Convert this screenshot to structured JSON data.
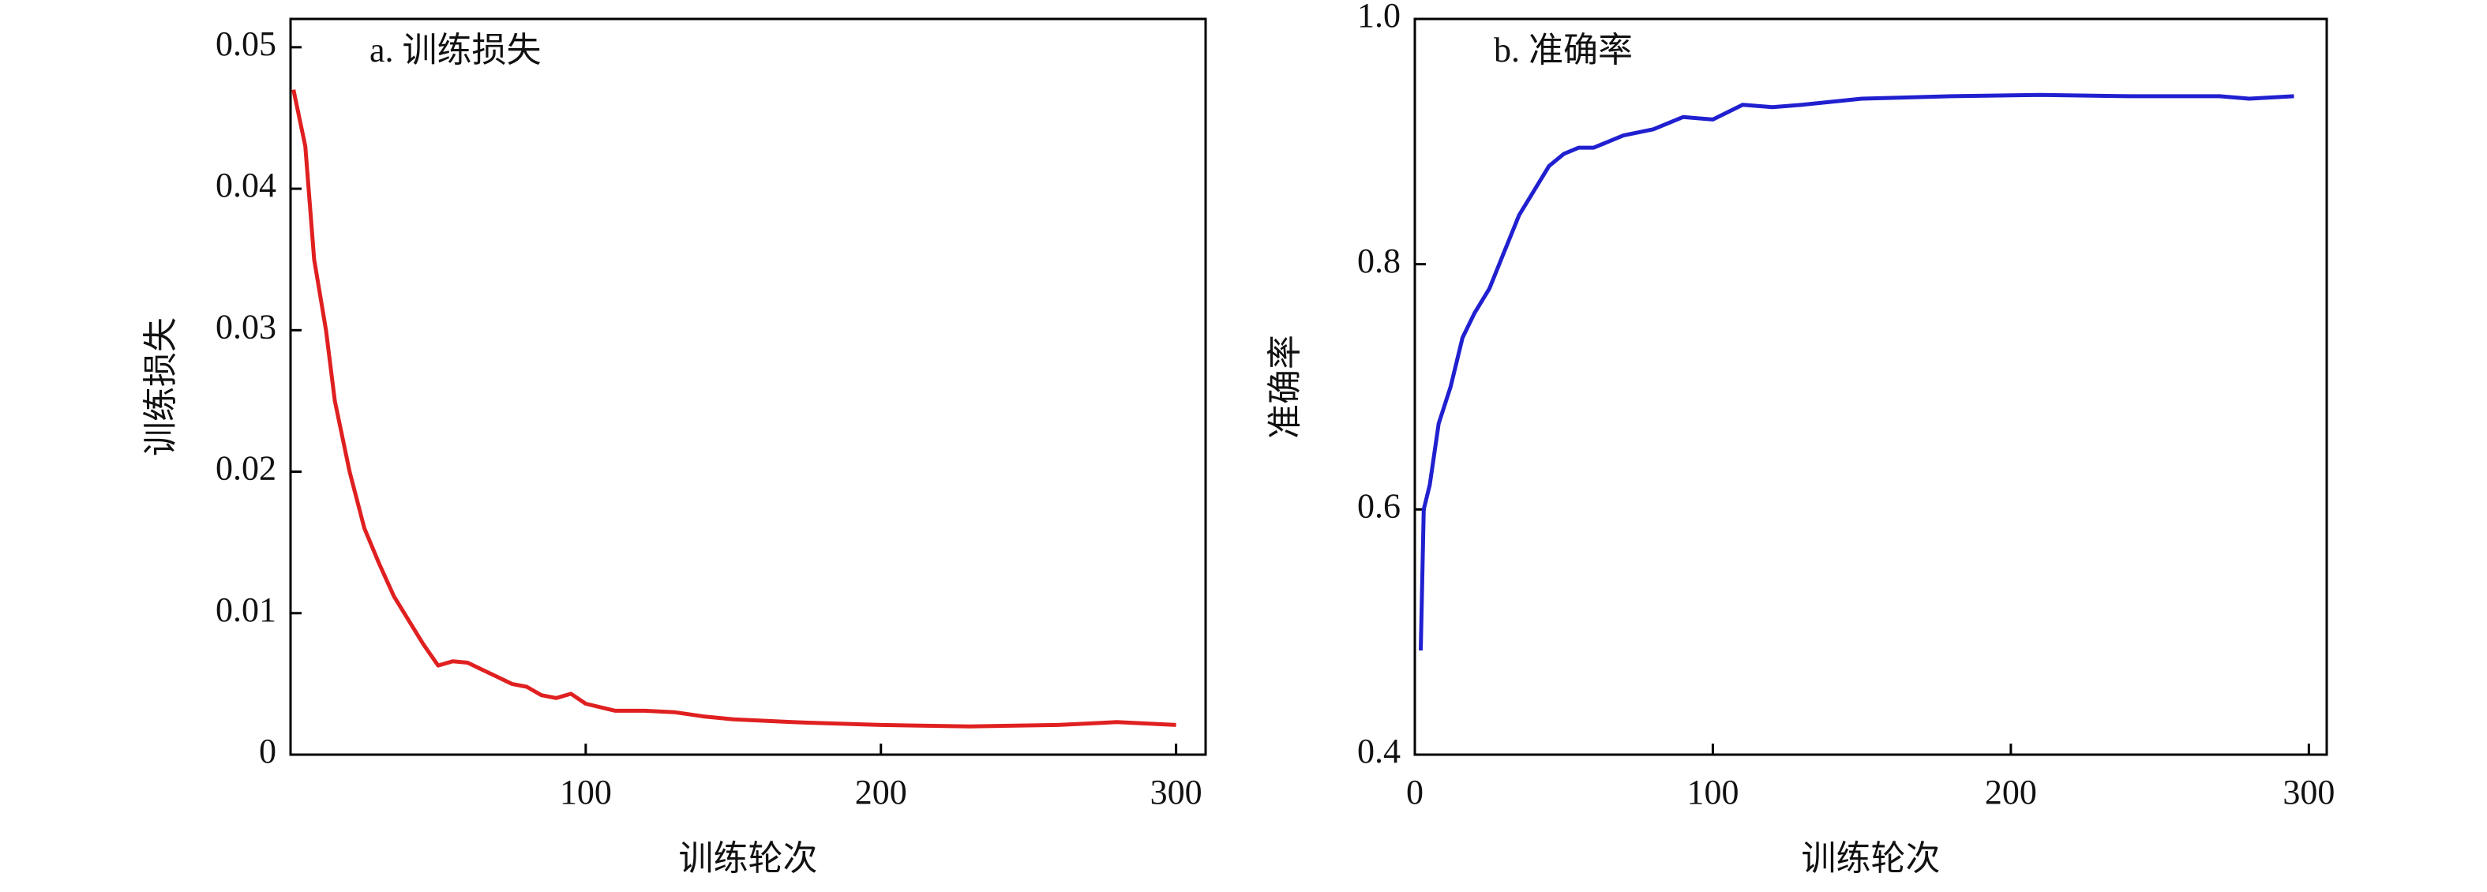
{
  "chart_data": [
    {
      "type": "line",
      "title": "a. 训练损失",
      "x_label": "训练轮次",
      "y_label": "训练损失",
      "color": "#e02020",
      "x": [
        1,
        3,
        5,
        8,
        12,
        15,
        20,
        25,
        30,
        35,
        40,
        45,
        50,
        55,
        60,
        65,
        70,
        75,
        80,
        85,
        90,
        95,
        100,
        110,
        120,
        130,
        140,
        150,
        170,
        200,
        230,
        260,
        280,
        300
      ],
      "values": [
        0.047,
        0.045,
        0.043,
        0.035,
        0.03,
        0.025,
        0.02,
        0.016,
        0.0135,
        0.0112,
        0.0095,
        0.0078,
        0.0063,
        0.0066,
        0.0065,
        0.006,
        0.0055,
        0.005,
        0.0048,
        0.0042,
        0.004,
        0.0043,
        0.0036,
        0.0031,
        0.0031,
        0.003,
        0.0027,
        0.0025,
        0.0023,
        0.0021,
        0.002,
        0.0021,
        0.0023,
        0.0021
      ],
      "xlim": [
        0,
        310
      ],
      "xticks": [
        100,
        200,
        300
      ],
      "ylim": [
        0,
        0.052
      ],
      "yticks": [
        0,
        0.01,
        0.02,
        0.03,
        0.04,
        0.05
      ]
    },
    {
      "type": "line",
      "title": "b. 准确率",
      "x_label": "训练轮次",
      "y_label": "准确率",
      "color": "#2020d0",
      "x": [
        2,
        3,
        5,
        8,
        12,
        16,
        20,
        25,
        30,
        35,
        40,
        45,
        50,
        55,
        60,
        70,
        80,
        90,
        100,
        110,
        120,
        130,
        150,
        180,
        210,
        240,
        270,
        280,
        295
      ],
      "values": [
        0.485,
        0.6,
        0.62,
        0.67,
        0.7,
        0.74,
        0.76,
        0.78,
        0.81,
        0.84,
        0.86,
        0.88,
        0.89,
        0.895,
        0.895,
        0.905,
        0.91,
        0.92,
        0.918,
        0.93,
        0.928,
        0.93,
        0.935,
        0.937,
        0.938,
        0.937,
        0.937,
        0.935,
        0.937
      ],
      "xlim": [
        0,
        306
      ],
      "xticks": [
        0,
        100,
        200,
        300
      ],
      "ylim": [
        0.4,
        1.0
      ],
      "yticks": [
        0.4,
        0.6,
        0.8,
        {
          "value": 1,
          "label": "1.0"
        }
      ]
    }
  ]
}
